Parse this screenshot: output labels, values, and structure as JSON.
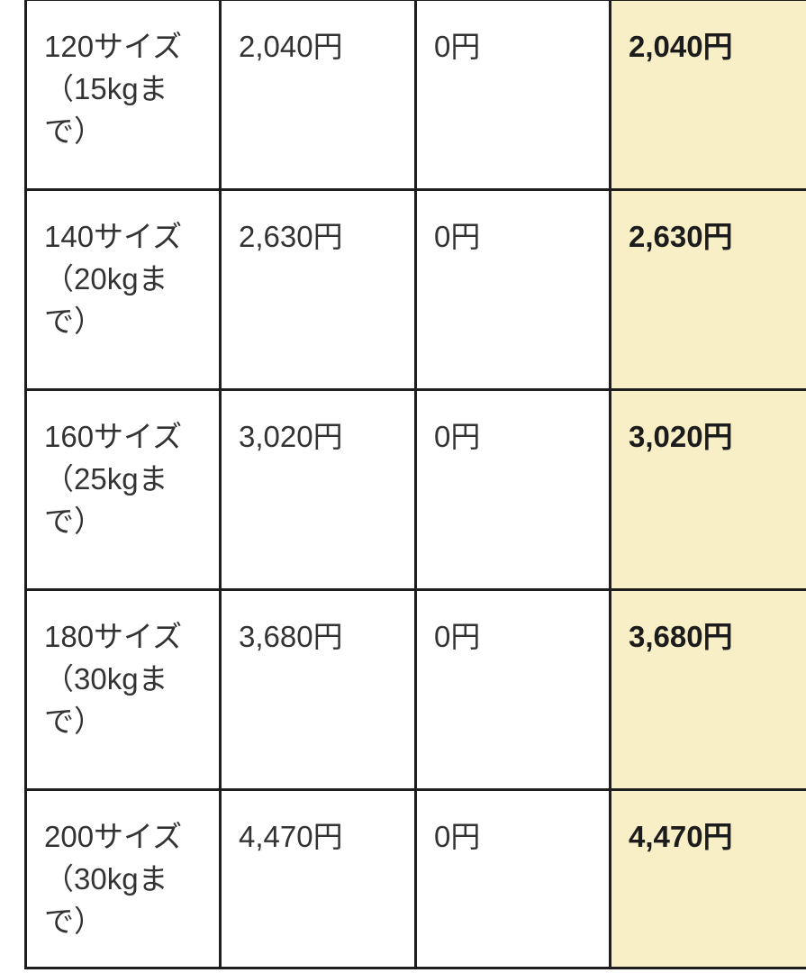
{
  "colors": {
    "highlight_background": "#f8efc6",
    "border": "#1e1e1e",
    "text": "#333333",
    "total_text": "#1c1c1c"
  },
  "pricing_table": {
    "rows": [
      {
        "size": "120サイズ\n（15kgま\nで）",
        "shipping_fee": "2,040円",
        "option_fee": "0円",
        "total": "2,040円"
      },
      {
        "size": "140サイズ\n（20kgま\nで）",
        "shipping_fee": "2,630円",
        "option_fee": "0円",
        "total": "2,630円"
      },
      {
        "size": "160サイズ\n（25kgま\nで）",
        "shipping_fee": "3,020円",
        "option_fee": "0円",
        "total": "3,020円"
      },
      {
        "size": "180サイズ\n（30kgま\nで）",
        "shipping_fee": "3,680円",
        "option_fee": "0円",
        "total": "3,680円"
      },
      {
        "size": "200サイズ\n（30kgま\nで）",
        "shipping_fee": "4,470円",
        "option_fee": "0円",
        "total": "4,470円"
      }
    ]
  }
}
